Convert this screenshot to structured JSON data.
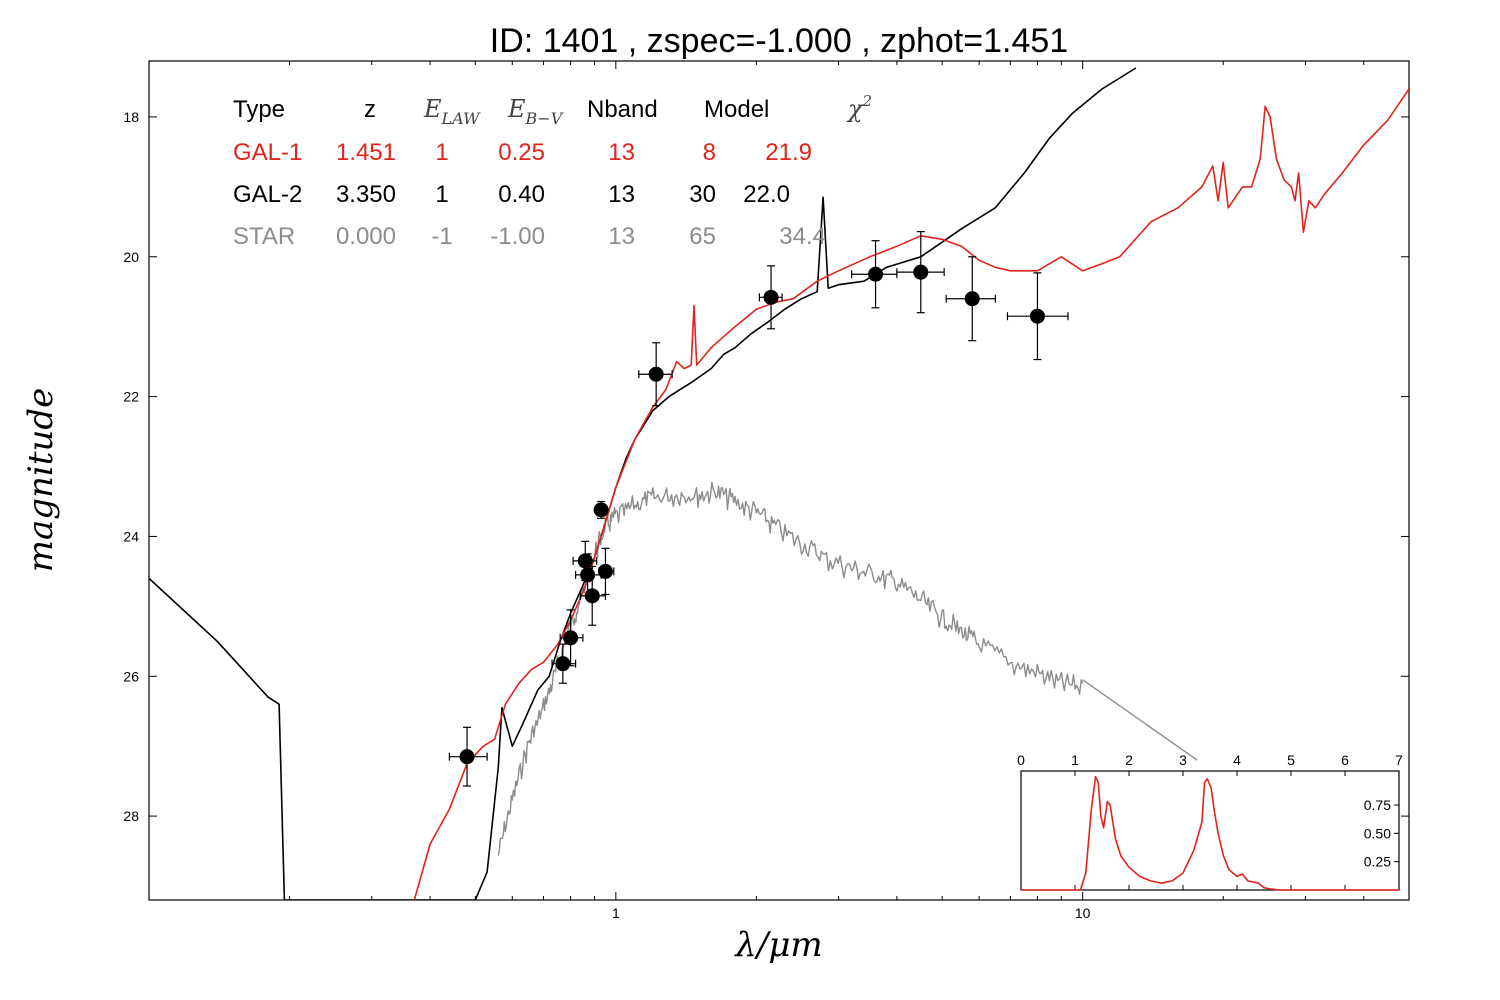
{
  "chart_data": [
    {
      "type": "scatter",
      "title": "ID:  1401  , zspec=-1.000 , zphot=1.451",
      "xlabel": "λ/μm",
      "ylabel": "magnitude",
      "xscale": "log",
      "xlim": [
        0.1,
        50
      ],
      "ylim": [
        29.2,
        17.2
      ],
      "y_inverted": true,
      "x_tick_labels": [
        {
          "value": 1,
          "label": "1"
        },
        {
          "value": 10,
          "label": "10"
        }
      ],
      "y_tick_labels": [
        {
          "value": 18,
          "label": "18"
        },
        {
          "value": 20,
          "label": "20"
        },
        {
          "value": 22,
          "label": "22"
        },
        {
          "value": 24,
          "label": "24"
        },
        {
          "value": 26,
          "label": "26"
        },
        {
          "value": 28,
          "label": "28"
        }
      ],
      "grid": false,
      "colors": {
        "gal1": "#e0241b",
        "gal2": "#000000",
        "star": "#8c8c8c"
      },
      "fit_table": {
        "headers": [
          "Type",
          "z",
          "E_LAW",
          "E_B-V",
          "Nband",
          "Model",
          "χ²"
        ],
        "rows": [
          {
            "type": "GAL-1",
            "z": "1.451",
            "elaw": "1",
            "ebv": "0.25",
            "nband": "13",
            "model": "8",
            "chi2": "21.9",
            "color": "#e0241b"
          },
          {
            "type": "GAL-2",
            "z": "3.350",
            "elaw": "1",
            "ebv": "0.40",
            "nband": "13",
            "model": "30",
            "chi2": "22.0",
            "color": "#000000"
          },
          {
            "type": "STAR",
            "z": "0.000",
            "elaw": "-1",
            "ebv": "-1.00",
            "nband": "13",
            "model": "65",
            "chi2": "34.4",
            "color": "#8c8c8c"
          }
        ]
      },
      "observations": [
        {
          "x": 0.48,
          "y": 27.15,
          "xerr_lo": 0.44,
          "xerr_hi": 0.53,
          "yerr": 0.42
        },
        {
          "x": 0.77,
          "y": 25.82,
          "xerr_lo": 0.73,
          "xerr_hi": 0.82,
          "yerr": 0.28
        },
        {
          "x": 0.8,
          "y": 25.45,
          "xerr_lo": 0.76,
          "xerr_hi": 0.85,
          "yerr": 0.4
        },
        {
          "x": 0.86,
          "y": 24.35,
          "xerr_lo": 0.81,
          "xerr_hi": 0.91,
          "yerr": 0.28
        },
        {
          "x": 0.87,
          "y": 24.55,
          "xerr_lo": 0.82,
          "xerr_hi": 0.93,
          "yerr": 0.3
        },
        {
          "x": 0.89,
          "y": 24.85,
          "xerr_lo": 0.84,
          "xerr_hi": 0.95,
          "yerr": 0.42
        },
        {
          "x": 0.93,
          "y": 23.62,
          "xerr_lo": 0.91,
          "xerr_hi": 0.95,
          "yerr": 0.12
        },
        {
          "x": 0.95,
          "y": 24.5,
          "xerr_lo": 0.92,
          "xerr_hi": 0.99,
          "yerr": 0.33
        },
        {
          "x": 1.22,
          "y": 21.68,
          "xerr_lo": 1.12,
          "xerr_hi": 1.32,
          "yerr": 0.45
        },
        {
          "x": 2.15,
          "y": 20.58,
          "xerr_lo": 2.03,
          "xerr_hi": 2.27,
          "yerr": 0.45
        },
        {
          "x": 3.6,
          "y": 20.25,
          "xerr_lo": 3.2,
          "xerr_hi": 4.0,
          "yerr": 0.48
        },
        {
          "x": 4.5,
          "y": 20.22,
          "xerr_lo": 4.0,
          "xerr_hi": 5.05,
          "yerr": 0.58
        },
        {
          "x": 5.8,
          "y": 20.6,
          "xerr_lo": 5.1,
          "xerr_hi": 6.5,
          "yerr": 0.6
        },
        {
          "x": 8.0,
          "y": 20.85,
          "xerr_lo": 6.9,
          "xerr_hi": 9.3,
          "yerr": 0.62
        }
      ],
      "series": [
        {
          "name": "GAL-1",
          "color": "#e0241b",
          "points": [
            [
              0.37,
              29.2
            ],
            [
              0.4,
              28.4
            ],
            [
              0.44,
              27.9
            ],
            [
              0.48,
              27.25
            ],
            [
              0.52,
              27.0
            ],
            [
              0.55,
              26.9
            ],
            [
              0.58,
              26.4
            ],
            [
              0.62,
              26.1
            ],
            [
              0.66,
              25.9
            ],
            [
              0.7,
              25.8
            ],
            [
              0.75,
              25.55
            ],
            [
              0.8,
              25.2
            ],
            [
              0.85,
              24.8
            ],
            [
              0.9,
              24.3
            ],
            [
              0.95,
              23.8
            ],
            [
              1.0,
              23.3
            ],
            [
              1.1,
              22.6
            ],
            [
              1.2,
              22.15
            ],
            [
              1.28,
              21.9
            ],
            [
              1.35,
              21.5
            ],
            [
              1.4,
              21.6
            ],
            [
              1.45,
              21.55
            ],
            [
              1.47,
              20.7
            ],
            [
              1.49,
              21.55
            ],
            [
              1.6,
              21.3
            ],
            [
              1.8,
              21.0
            ],
            [
              2.0,
              20.75
            ],
            [
              2.2,
              20.65
            ],
            [
              2.4,
              20.6
            ],
            [
              2.7,
              20.35
            ],
            [
              3.0,
              20.2
            ],
            [
              3.5,
              20.0
            ],
            [
              4.0,
              19.85
            ],
            [
              4.5,
              19.7
            ],
            [
              5.0,
              19.75
            ],
            [
              5.5,
              19.85
            ],
            [
              6.0,
              20.05
            ],
            [
              6.5,
              20.15
            ],
            [
              7.0,
              20.2
            ],
            [
              8.0,
              20.2
            ],
            [
              9.0,
              20.0
            ],
            [
              10.0,
              20.2
            ],
            [
              11.0,
              20.1
            ],
            [
              12.0,
              20.0
            ],
            [
              14.0,
              19.5
            ],
            [
              16.0,
              19.3
            ],
            [
              18.0,
              19.0
            ],
            [
              19.0,
              18.7
            ],
            [
              19.5,
              19.2
            ],
            [
              20.0,
              18.65
            ],
            [
              20.5,
              19.3
            ],
            [
              22.0,
              19.0
            ],
            [
              23.0,
              19.0
            ],
            [
              24.0,
              18.6
            ],
            [
              24.6,
              17.85
            ],
            [
              25.2,
              18.0
            ],
            [
              26.0,
              18.6
            ],
            [
              27.0,
              18.9
            ],
            [
              28.0,
              19.0
            ],
            [
              28.5,
              19.2
            ],
            [
              29.0,
              18.8
            ],
            [
              29.7,
              19.65
            ],
            [
              30.5,
              19.2
            ],
            [
              31.5,
              19.3
            ],
            [
              33.0,
              19.1
            ],
            [
              36.0,
              18.8
            ],
            [
              40.0,
              18.4
            ],
            [
              45.0,
              18.05
            ],
            [
              50.0,
              17.6
            ]
          ]
        },
        {
          "name": "GAL-2",
          "color": "#000000",
          "points": [
            [
              0.1,
              24.6
            ],
            [
              0.14,
              25.5
            ],
            [
              0.18,
              26.3
            ],
            [
              0.19,
              26.4
            ],
            [
              0.195,
              29.2
            ],
            [
              0.5,
              29.2
            ],
            [
              0.53,
              28.8
            ],
            [
              0.56,
              27.3
            ],
            [
              0.57,
              26.45
            ],
            [
              0.6,
              27.0
            ],
            [
              0.63,
              26.7
            ],
            [
              0.68,
              26.2
            ],
            [
              0.72,
              26.0
            ],
            [
              0.76,
              25.5
            ],
            [
              0.8,
              25.1
            ],
            [
              0.85,
              24.7
            ],
            [
              0.9,
              24.3
            ],
            [
              0.95,
              23.8
            ],
            [
              1.0,
              23.3
            ],
            [
              1.05,
              22.9
            ],
            [
              1.1,
              22.6
            ],
            [
              1.15,
              22.4
            ],
            [
              1.2,
              22.2
            ],
            [
              1.3,
              22.0
            ],
            [
              1.45,
              21.8
            ],
            [
              1.6,
              21.6
            ],
            [
              1.7,
              21.4
            ],
            [
              1.8,
              21.3
            ],
            [
              1.95,
              21.1
            ],
            [
              2.1,
              20.95
            ],
            [
              2.3,
              20.75
            ],
            [
              2.5,
              20.6
            ],
            [
              2.7,
              20.5
            ],
            [
              2.78,
              19.15
            ],
            [
              2.85,
              20.45
            ],
            [
              3.0,
              20.4
            ],
            [
              3.4,
              20.35
            ],
            [
              3.8,
              20.15
            ],
            [
              4.5,
              20.0
            ],
            [
              5.5,
              19.6
            ],
            [
              6.5,
              19.3
            ],
            [
              7.5,
              18.8
            ],
            [
              8.5,
              18.3
            ],
            [
              9.5,
              17.95
            ],
            [
              11.0,
              17.6
            ],
            [
              13.0,
              17.3
            ]
          ]
        },
        {
          "name": "STAR",
          "color": "#8c8c8c",
          "noise": 0.35,
          "points": [
            [
              0.56,
              28.5
            ],
            [
              0.6,
              27.7
            ],
            [
              0.65,
              26.9
            ],
            [
              0.7,
              26.4
            ],
            [
              0.75,
              25.8
            ],
            [
              0.8,
              25.2
            ],
            [
              0.85,
              24.75
            ],
            [
              0.9,
              24.2
            ],
            [
              0.95,
              23.8
            ],
            [
              1.0,
              23.65
            ],
            [
              1.1,
              23.5
            ],
            [
              1.2,
              23.4
            ],
            [
              1.35,
              23.35
            ],
            [
              1.5,
              23.35
            ],
            [
              1.65,
              23.3
            ],
            [
              1.8,
              23.45
            ],
            [
              2.0,
              23.6
            ],
            [
              2.2,
              23.8
            ],
            [
              2.5,
              24.05
            ],
            [
              2.8,
              24.25
            ],
            [
              3.2,
              24.4
            ],
            [
              3.6,
              24.5
            ],
            [
              4.0,
              24.6
            ],
            [
              4.5,
              24.85
            ],
            [
              5.0,
              25.1
            ],
            [
              5.5,
              25.3
            ],
            [
              6.0,
              25.5
            ],
            [
              7.0,
              25.75
            ],
            [
              8.0,
              25.9
            ],
            [
              9.0,
              26.05
            ],
            [
              10.0,
              26.1
            ]
          ]
        },
        {
          "name": "STAR-tail",
          "color": "#8c8c8c",
          "points": [
            [
              10.0,
              26.05
            ],
            [
              17.6,
              27.2
            ]
          ]
        }
      ]
    },
    {
      "type": "line",
      "title": "",
      "xlim": [
        0,
        7
      ],
      "ylim": [
        0,
        1.05
      ],
      "x_tick_labels": [
        "0",
        "1",
        "2",
        "3",
        "4",
        "5",
        "6",
        "7"
      ],
      "y_tick_labels": [
        {
          "value": 0.25,
          "label": "0.25"
        },
        {
          "value": 0.5,
          "label": "0.50"
        },
        {
          "value": 0.75,
          "label": "0.75"
        }
      ],
      "series": [
        {
          "color": "#e0241b",
          "points": [
            [
              0,
              0
            ],
            [
              1.1,
              0
            ],
            [
              1.2,
              0.15
            ],
            [
              1.3,
              0.7
            ],
            [
              1.38,
              1.0
            ],
            [
              1.43,
              0.95
            ],
            [
              1.48,
              0.65
            ],
            [
              1.53,
              0.55
            ],
            [
              1.6,
              0.78
            ],
            [
              1.65,
              0.75
            ],
            [
              1.75,
              0.45
            ],
            [
              1.85,
              0.3
            ],
            [
              2.0,
              0.2
            ],
            [
              2.2,
              0.12
            ],
            [
              2.4,
              0.08
            ],
            [
              2.6,
              0.06
            ],
            [
              2.8,
              0.08
            ],
            [
              3.0,
              0.15
            ],
            [
              3.2,
              0.35
            ],
            [
              3.35,
              0.6
            ],
            [
              3.4,
              0.95
            ],
            [
              3.45,
              0.98
            ],
            [
              3.52,
              0.9
            ],
            [
              3.58,
              0.7
            ],
            [
              3.65,
              0.5
            ],
            [
              3.75,
              0.3
            ],
            [
              3.85,
              0.18
            ],
            [
              4.0,
              0.12
            ],
            [
              4.1,
              0.14
            ],
            [
              4.2,
              0.08
            ],
            [
              4.4,
              0.06
            ],
            [
              4.5,
              0.02
            ],
            [
              4.6,
              0.01
            ],
            [
              4.8,
              0
            ],
            [
              7,
              0
            ]
          ]
        }
      ]
    }
  ]
}
